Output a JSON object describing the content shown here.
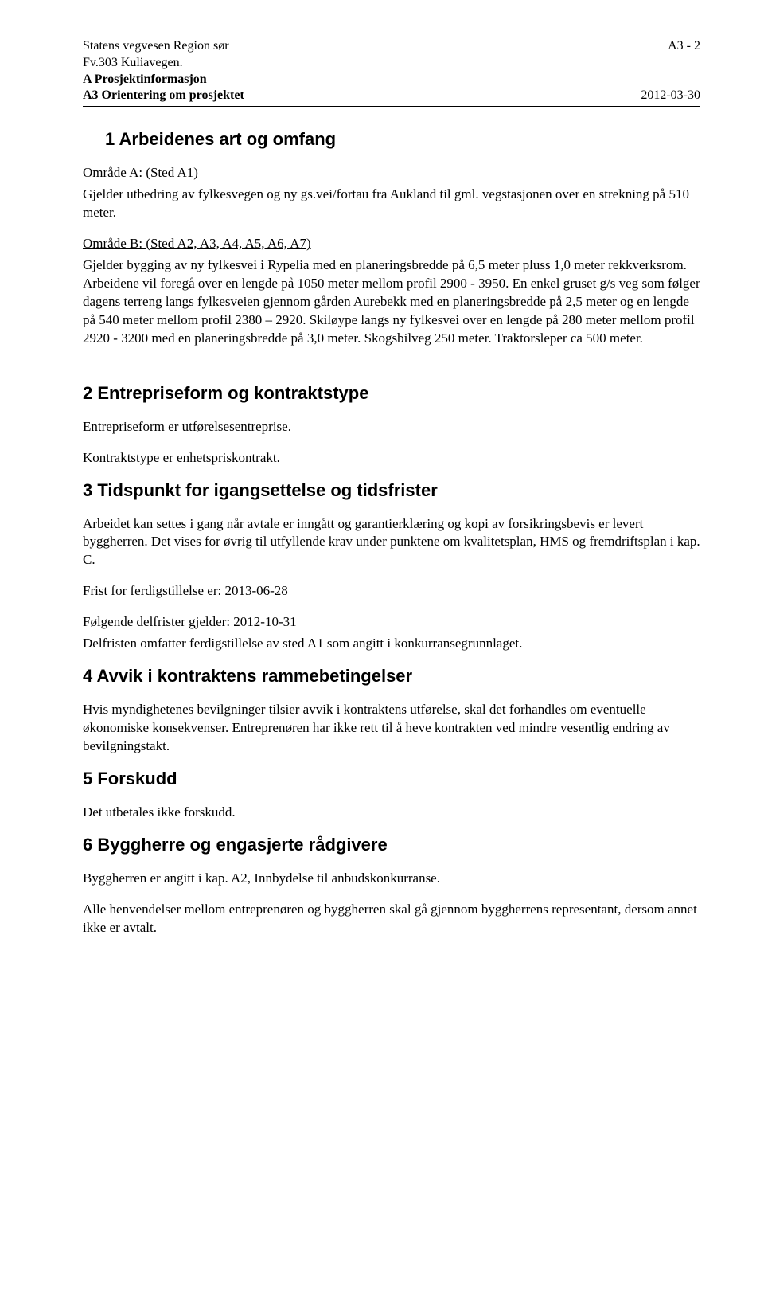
{
  "header": {
    "left_line1": "Statens vegvesen Region sør",
    "left_line2": "Fv.303 Kuliavegen.",
    "left_line3_bold": "A Prosjektinformasjon",
    "left_line4_bold": "A3 Orientering om prosjektet",
    "right_line1": "A3 - 2",
    "right_line2": "2012-03-30"
  },
  "sections": {
    "s1": {
      "heading": "1 Arbeidenes art og omfang",
      "area_a_title": "Område A: (Sted A1)",
      "area_a_body": "Gjelder utbedring av fylkesvegen og ny gs.vei/fortau fra Aukland til gml. vegstasjonen over en strekning på 510 meter.",
      "area_b_title": "Område B: (Sted A2, A3, A4, A5, A6, A7)",
      "area_b_body": "Gjelder bygging av ny fylkesvei i Rypelia med en planeringsbredde på 6,5 meter pluss 1,0 meter rekkverksrom. Arbeidene vil foregå over en lengde på 1050 meter mellom profil 2900 - 3950. En enkel gruset g/s veg som følger dagens terreng langs fylkesveien gjennom gården Aurebekk med en planeringsbredde på 2,5 meter og en lengde på 540 meter mellom profil 2380 – 2920. Skiløype langs ny fylkesvei over en lengde på 280 meter mellom profil 2920 - 3200 med en planeringsbredde på 3,0 meter. Skogsbilveg 250 meter. Traktorsleper ca 500 meter."
    },
    "s2": {
      "heading": "2 Entrepriseform og kontraktstype",
      "p1": "Entrepriseform er utførelsesentreprise.",
      "p2": "Kontraktstype er enhetspriskontrakt."
    },
    "s3": {
      "heading": "3 Tidspunkt for igangsettelse og tidsfrister",
      "p1": "Arbeidet kan settes i gang når avtale er inngått og garantierklæring og kopi av forsikringsbevis er levert byggherren. Det vises for øvrig til utfyllende krav under punktene om kvalitetsplan, HMS og fremdriftsplan i kap. C.",
      "p2": "Frist for ferdigstillelse er: 2013-06-28",
      "p3": "Følgende delfrister gjelder: 2012-10-31",
      "p4": "Delfristen omfatter ferdigstillelse av sted A1 som angitt i konkurransegrunnlaget."
    },
    "s4": {
      "heading": "4 Avvik i kontraktens rammebetingelser",
      "p1": "Hvis myndighetenes bevilgninger tilsier avvik i kontraktens utførelse, skal det forhandles om eventuelle økonomiske konsekvenser. Entreprenøren har ikke rett til å heve kontrakten ved mindre vesentlig endring av bevilgningstakt."
    },
    "s5": {
      "heading": "5 Forskudd",
      "p1": "Det utbetales ikke forskudd."
    },
    "s6": {
      "heading": "6 Byggherre og engasjerte rådgivere",
      "p1": "Byggherren er angitt i kap. A2, Innbydelse til anbudskonkurranse.",
      "p2": "Alle henvendelser mellom entreprenøren og byggherren skal gå gjennom byggherrens representant, dersom annet ikke er avtalt."
    }
  }
}
